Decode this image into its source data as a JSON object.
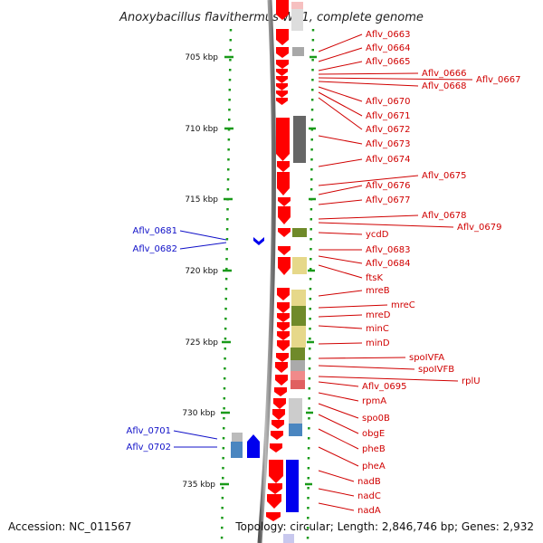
{
  "title": "Anoxybacillus flavithermus WK1, complete genome",
  "accession": "Accession: NC_011567",
  "topology": "Topology: circular; Length: 2,846,746 bp; Genes: 2,932",
  "kbp_labels": [
    "705 kbp",
    "710 kbp",
    "715 kbp",
    "720 kbp",
    "725 kbp",
    "730 kbp",
    "735 kbp"
  ],
  "labels_right": [
    "Aflv_0663",
    "Aflv_0664",
    "Aflv_0665",
    "Aflv_0666",
    "Aflv_0667",
    "Aflv_0668",
    "Aflv_0670",
    "Aflv_0671",
    "Aflv_0672",
    "Aflv_0673",
    "Aflv_0674",
    "Aflv_0675",
    "Aflv_0676",
    "Aflv_0677",
    "Aflv_0678",
    "Aflv_0679",
    "ycdD",
    "Aflv_0683",
    "Aflv_0684",
    "ftsK",
    "mreB",
    "mreC",
    "mreD",
    "minC",
    "minD",
    "spoIVFA",
    "spoIVFB",
    "rplU",
    "Aflv_0695",
    "rpmA",
    "spo0B",
    "obgE",
    "pheB",
    "pheA",
    "nadB",
    "nadC",
    "nadA"
  ],
  "labels_left": [
    "Aflv_0681",
    "Aflv_0682",
    "Aflv_0701",
    "Aflv_0702"
  ],
  "colors": {
    "forward_gene": "#ff0000",
    "reverse_gene": "#0000ee",
    "label_right": "#d00000",
    "label_left": "#1010c8",
    "tick": "#11aa11",
    "backbone": "#888888"
  }
}
